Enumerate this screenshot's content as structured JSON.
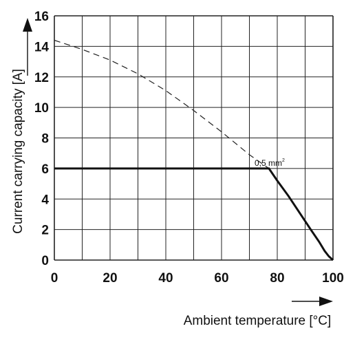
{
  "chart_data": {
    "type": "line",
    "title": "",
    "xlabel": "Ambient temperature [°C]",
    "ylabel": "Current carrying capacity [A]",
    "xlim": [
      0,
      100
    ],
    "ylim": [
      0,
      16
    ],
    "xticks": [
      0,
      20,
      40,
      60,
      80,
      100
    ],
    "yticks": [
      0,
      2,
      4,
      6,
      8,
      10,
      12,
      14,
      16
    ],
    "grid": true,
    "grid_x_step": 10,
    "grid_y_step": 2,
    "series": [
      {
        "style": "solid",
        "x": [
          0,
          77,
          80,
          84,
          88,
          92,
          95,
          97,
          98.5,
          100
        ],
        "y": [
          6,
          6,
          5.2,
          4.2,
          3.1,
          2.0,
          1.2,
          0.6,
          0.25,
          0
        ]
      },
      {
        "style": "dashed",
        "x": [
          0,
          10,
          20,
          30,
          40,
          50,
          60,
          70,
          77
        ],
        "y": [
          14.4,
          13.8,
          13.1,
          12.2,
          11.1,
          9.8,
          8.4,
          6.9,
          6.0
        ]
      }
    ],
    "annotation": {
      "text": "0,5 mm",
      "superscript": "2",
      "x": 80,
      "y": 6.2
    }
  }
}
